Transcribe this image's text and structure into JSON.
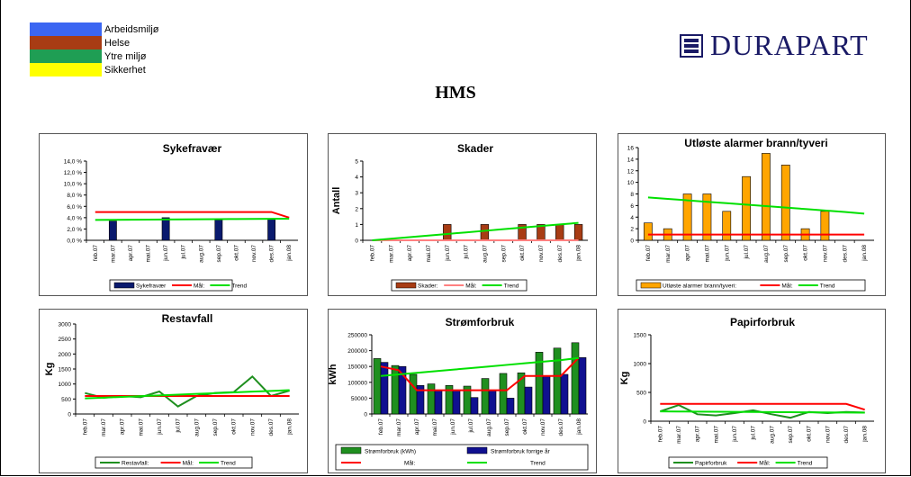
{
  "header": {
    "legend": [
      {
        "label": "Arbeidsmiljø",
        "color": "#3b66f2"
      },
      {
        "label": "Helse",
        "color": "#a83c14"
      },
      {
        "label": "Ytre miljø",
        "color": "#1f9e54"
      },
      {
        "label": "Sikkerhet",
        "color": "#ffff00"
      }
    ],
    "logo_text": "DURAPART",
    "title": "HMS"
  },
  "months": [
    "feb.07",
    "mar.07",
    "apr.07",
    "mai.07",
    "jun.07",
    "jul.07",
    "aug.07",
    "sep.07",
    "okt.07",
    "nov.07",
    "des.07",
    "jan.08"
  ],
  "chart_data": [
    {
      "id": "sykefravaer",
      "type": "bar",
      "title": "Sykefravær",
      "ylabel": "",
      "ylim": [
        0,
        14
      ],
      "yticks": [
        "0,0 %",
        "2,0 %",
        "4,0 %",
        "6,0 %",
        "8,0 %",
        "10,0 %",
        "12,0 %",
        "14,0 %"
      ],
      "ystep": 2,
      "xoffset": 1,
      "grid": false,
      "series": [
        {
          "name": "Sykefravær",
          "kind": "bar",
          "color": "#0a1a6e",
          "values": [
            null,
            3.4,
            null,
            null,
            4.0,
            null,
            null,
            3.6,
            null,
            null,
            3.8,
            null
          ]
        },
        {
          "name": "Mål:",
          "kind": "line",
          "color": "#ff0000",
          "values": [
            5,
            5,
            5,
            5,
            5,
            5,
            5,
            5,
            5,
            5,
            5,
            4
          ]
        },
        {
          "name": "Trend",
          "kind": "line",
          "color": "#00e000",
          "values": [
            3.6,
            3.62,
            3.64,
            3.66,
            3.68,
            3.7,
            3.72,
            3.74,
            3.76,
            3.78,
            3.8,
            3.82
          ]
        }
      ],
      "legend": [
        "Sykefravær",
        "Mål:",
        "Trend"
      ]
    },
    {
      "id": "skader",
      "type": "bar",
      "title": "Skader",
      "ylabel": "Antall",
      "ylim": [
        0,
        5
      ],
      "yticks": [
        "0",
        "1",
        "2",
        "3",
        "4",
        "5"
      ],
      "ystep": 1,
      "xoffset": 0,
      "grid": false,
      "series": [
        {
          "name": "Skader:",
          "kind": "bar",
          "color": "#a83c14",
          "values": [
            0,
            0,
            0,
            0,
            1,
            0,
            1,
            0,
            1,
            1,
            1,
            1
          ]
        },
        {
          "name": "Mål:",
          "kind": "line",
          "color": "#ff8080",
          "values": [
            0,
            0,
            0,
            0,
            0,
            0,
            0,
            0,
            0,
            0,
            0,
            0
          ]
        },
        {
          "name": "Trend",
          "kind": "line",
          "color": "#00e000",
          "values": [
            0.0,
            0.1,
            0.2,
            0.3,
            0.4,
            0.5,
            0.6,
            0.7,
            0.8,
            0.9,
            1.0,
            1.1
          ]
        }
      ],
      "legend": [
        "Skader:",
        "Mål:",
        "Trend"
      ]
    },
    {
      "id": "alarmer",
      "type": "bar",
      "title": "Utløste alarmer brann/tyveri",
      "ylabel": "",
      "ylim": [
        0,
        16
      ],
      "yticks": [
        "0",
        "2",
        "4",
        "6",
        "8",
        "10",
        "12",
        "14",
        "16"
      ],
      "ystep": 2,
      "xoffset": 0,
      "grid": false,
      "series": [
        {
          "name": "Utløste alarmer brann/tyveri:",
          "kind": "bar",
          "color": "#ffa500",
          "values": [
            3,
            2,
            8,
            8,
            5,
            11,
            15,
            13,
            2,
            5,
            0,
            0
          ]
        },
        {
          "name": "Mål:",
          "kind": "line",
          "color": "#ff0000",
          "values": [
            1,
            1,
            1,
            1,
            1,
            1,
            1,
            1,
            1,
            1,
            1,
            1
          ]
        },
        {
          "name": "Trend",
          "kind": "line",
          "color": "#00e000",
          "values": [
            7.4,
            7.15,
            6.9,
            6.65,
            6.4,
            6.15,
            5.9,
            5.65,
            5.4,
            5.15,
            4.9,
            4.6
          ]
        }
      ],
      "legend": [
        "Utløste alarmer brann/tyveri:",
        "Mål:",
        "Trend"
      ]
    },
    {
      "id": "restavfall",
      "type": "line",
      "title": "Restavfall",
      "ylabel": "Kg",
      "ylim": [
        0,
        3000
      ],
      "yticks": [
        "0",
        "500",
        "1000",
        "1500",
        "2000",
        "2500",
        "3000"
      ],
      "ystep": 500,
      "xoffset": 0,
      "grid": false,
      "series": [
        {
          "name": "Restavfall:",
          "kind": "line",
          "color": "#1f8f1f",
          "values": [
            700,
            540,
            600,
            560,
            750,
            250,
            600,
            700,
            730,
            1250,
            600,
            780
          ]
        },
        {
          "name": "Mål:",
          "kind": "line",
          "color": "#ff0000",
          "values": [
            600,
            600,
            600,
            600,
            600,
            600,
            600,
            600,
            600,
            600,
            600,
            600
          ]
        },
        {
          "name": "Trend",
          "kind": "line",
          "color": "#00e000",
          "values": [
            520,
            545,
            570,
            595,
            620,
            645,
            670,
            695,
            720,
            745,
            770,
            795
          ]
        }
      ],
      "legend": [
        "Restavfall:",
        "Mål:",
        "Trend"
      ]
    },
    {
      "id": "stromforbruk",
      "type": "bar",
      "title": "Strømforbruk",
      "ylabel": "kWh",
      "ylim": [
        0,
        250000
      ],
      "yticks": [
        "0",
        "50000",
        "100000",
        "150000",
        "200000",
        "250000"
      ],
      "ystep": 50000,
      "xoffset": 0,
      "grid": false,
      "series": [
        {
          "name": "Strømforbruk (kWh)",
          "kind": "bar",
          "color": "#1f8f1f",
          "values": [
            175000,
            153000,
            125000,
            95000,
            90000,
            88000,
            112000,
            128000,
            130000,
            195000,
            208000,
            225000
          ]
        },
        {
          "name": "Strømforbruk forrige år",
          "kind": "bar",
          "color": "#101090",
          "values": [
            163000,
            150000,
            90000,
            75000,
            75000,
            52000,
            75000,
            50000,
            85000,
            120000,
            125000,
            178000
          ]
        },
        {
          "name": "Mål:",
          "kind": "line",
          "color": "#ff0000",
          "values": [
            150000,
            138000,
            75000,
            75000,
            75000,
            75000,
            75000,
            75000,
            120000,
            120000,
            120000,
            178000
          ]
        },
        {
          "name": "Trend",
          "kind": "line",
          "color": "#00e000",
          "values": [
            120000,
            125000,
            130000,
            135000,
            140000,
            145000,
            150000,
            155000,
            160000,
            165000,
            170000,
            177000
          ]
        }
      ],
      "legend": [
        "Strømforbruk (kWh)",
        "Strømforbruk forrige år",
        "Mål:",
        "Trend"
      ]
    },
    {
      "id": "papirforbruk",
      "type": "line",
      "title": "Papirforbruk",
      "ylabel": "Kg",
      "ylim": [
        0,
        1500
      ],
      "yticks": [
        "0",
        "500",
        "1000",
        "1500"
      ],
      "ystep": 500,
      "xoffset": 0,
      "grid": false,
      "series": [
        {
          "name": "Papirforbruk",
          "kind": "line",
          "color": "#1f8f1f",
          "values": [
            170,
            280,
            120,
            100,
            140,
            190,
            120,
            60,
            160,
            140,
            160,
            150
          ]
        },
        {
          "name": "Mål:",
          "kind": "line",
          "color": "#ff0000",
          "values": [
            300,
            300,
            300,
            300,
            300,
            300,
            300,
            300,
            300,
            300,
            300,
            200
          ]
        },
        {
          "name": "Trend",
          "kind": "line",
          "color": "#00e000",
          "values": [
            170,
            168,
            166,
            164,
            162,
            160,
            158,
            156,
            154,
            152,
            150,
            148
          ]
        }
      ],
      "legend": [
        "Papirforbruk",
        "Mål:",
        "Trend"
      ]
    }
  ]
}
